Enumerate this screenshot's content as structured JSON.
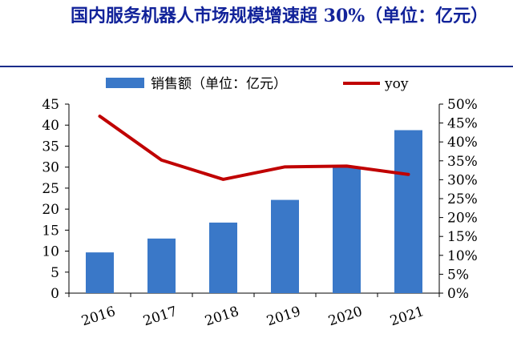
{
  "title": "国内服务机器人市场规模增速超 30%（单位：亿元）",
  "chart_data": {
    "type": "bar",
    "title": "国内服务机器人市场规模增速超 30%（单位：亿元）",
    "categories": [
      "2016",
      "2017",
      "2018",
      "2019",
      "2020",
      "2021"
    ],
    "series": [
      {
        "name": "销售额（单位：亿元）",
        "type": "bar",
        "axis": "left",
        "color": "#3a78c8",
        "values": [
          9.7,
          13.0,
          16.8,
          22.2,
          30.0,
          38.8
        ]
      },
      {
        "name": "yoy",
        "type": "line",
        "axis": "right",
        "color": "#c00000",
        "values": [
          0.468,
          0.352,
          0.301,
          0.334,
          0.336,
          0.314
        ]
      }
    ],
    "y_left": {
      "ylim": [
        0,
        45
      ],
      "ticks": [
        "0",
        "5",
        "10",
        "15",
        "20",
        "25",
        "30",
        "35",
        "40",
        "45"
      ]
    },
    "y_right": {
      "ylim": [
        0,
        0.5
      ],
      "ticks": [
        "0%",
        "5%",
        "10%",
        "15%",
        "20%",
        "25%",
        "30%",
        "35%",
        "40%",
        "45%",
        "50%"
      ]
    },
    "legend_position": "top",
    "grid": false
  }
}
